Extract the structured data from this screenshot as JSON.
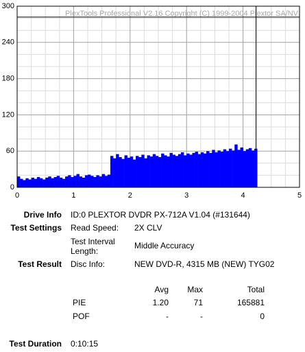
{
  "chart_data": {
    "type": "bar",
    "watermark": "PlexTools Professional V2.16 Copyright (C) 1999-2004 Plextor SA/NV",
    "color": "#0000ff",
    "grid": true,
    "x": [
      0,
      0.05,
      0.1,
      0.15,
      0.2,
      0.25,
      0.3,
      0.35,
      0.4,
      0.45,
      0.5,
      0.55,
      0.6,
      0.65,
      0.7,
      0.75,
      0.8,
      0.85,
      0.9,
      0.95,
      1,
      1.05,
      1.1,
      1.15,
      1.2,
      1.25,
      1.3,
      1.35,
      1.4,
      1.45,
      1.5,
      1.55,
      1.6,
      1.65,
      1.7,
      1.75,
      1.8,
      1.85,
      1.9,
      1.95,
      2,
      2.05,
      2.1,
      2.15,
      2.2,
      2.25,
      2.3,
      2.35,
      2.4,
      2.45,
      2.5,
      2.55,
      2.6,
      2.65,
      2.7,
      2.75,
      2.8,
      2.85,
      2.9,
      2.95,
      3,
      3.05,
      3.1,
      3.15,
      3.2,
      3.25,
      3.3,
      3.35,
      3.4,
      3.45,
      3.5,
      3.55,
      3.6,
      3.65,
      3.7,
      3.75,
      3.8,
      3.85,
      3.9,
      3.95,
      4,
      4.05,
      4.1,
      4.15,
      4.2
    ],
    "values": [
      18,
      14,
      12,
      15,
      13,
      16,
      14,
      17,
      15,
      13,
      16,
      18,
      15,
      17,
      19,
      16,
      14,
      18,
      20,
      17,
      19,
      22,
      18,
      16,
      20,
      21,
      19,
      17,
      20,
      18,
      22,
      19,
      21,
      52,
      48,
      55,
      50,
      47,
      53,
      49,
      51,
      46,
      52,
      50,
      54,
      48,
      53,
      51,
      55,
      52,
      50,
      56,
      53,
      51,
      57,
      54,
      52,
      55,
      58,
      53,
      56,
      54,
      57,
      59,
      55,
      58,
      56,
      60,
      57,
      62,
      58,
      61,
      59,
      63,
      60,
      64,
      61,
      71,
      62,
      66,
      60,
      63,
      65,
      61,
      64
    ],
    "bar_width": 0.05,
    "xlim": [
      0,
      5
    ],
    "xticks": [
      0,
      1,
      2,
      3,
      4,
      5
    ],
    "xminorticks": [
      0.25,
      0.5,
      0.75,
      1.25,
      1.5,
      1.75,
      2.25,
      2.5,
      2.75,
      3.25,
      3.5,
      3.75,
      4.25,
      4.5,
      4.75
    ],
    "ylim": [
      0,
      300
    ],
    "yticks": [
      0,
      60,
      120,
      180,
      240,
      300
    ],
    "yminorticks": [
      20,
      40,
      80,
      100,
      140,
      160,
      200,
      220,
      260,
      280
    ],
    "end_x": 4.23,
    "limit_y": 282
  },
  "info": {
    "drive_info": {
      "label": "Drive Info",
      "value": "ID:0 PLEXTOR DVDR PX-712A V1.04 (#131644)"
    },
    "test_settings": {
      "label": "Test Settings",
      "read_speed_label": "Read Speed:",
      "read_speed": "2X CLV",
      "interval_label": "Test Interval Length:",
      "interval": "Middle Accuracy"
    },
    "test_result": {
      "label": "Test Result",
      "disc_info_label": "Disc Info:",
      "disc_info": "NEW DVD-R, 4315 MB (NEW) TYG02"
    },
    "table": {
      "header": [
        "Avg",
        "Max",
        "Total"
      ],
      "rows": [
        [
          "PIE",
          "1.20",
          "71",
          "165881"
        ],
        [
          "POF",
          "-",
          "-",
          "0"
        ]
      ]
    },
    "test_duration": {
      "label": "Test Duration",
      "value": "0:10:15"
    }
  }
}
